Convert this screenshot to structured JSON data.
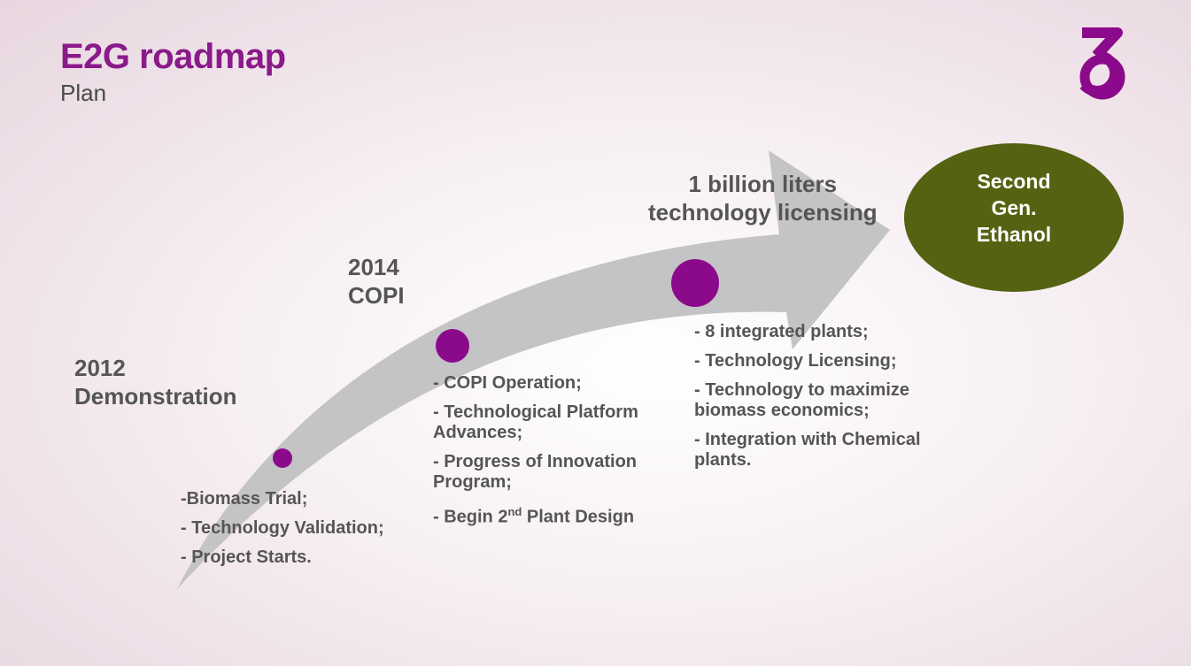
{
  "header": {
    "title": "E2G roadmap",
    "subtitle": "Plan"
  },
  "colors": {
    "title": "#8a1a8a",
    "milestone_dot": "#8b0a8b",
    "arrow": "#c4c3c6",
    "goal": "#546212",
    "logo": "#8b0a8b"
  },
  "logo": {
    "icon": "numeral-3-logo-icon"
  },
  "milestones": [
    {
      "year": "2012",
      "name": "Demonstration",
      "items": [
        "-Biomass Trial;",
        "- Technology Validation;",
        "- Project Starts."
      ]
    },
    {
      "year": "2014",
      "name": "COPI",
      "items": [
        "- COPI Operation;",
        "- Technological Platform Advances;",
        "- Progress of Innovation Program;",
        "- Begin 2nd Plant Design"
      ]
    },
    {
      "year": "1 billion liters",
      "name": "technology licensing",
      "items": [
        "- 8 integrated plants;",
        "- Technology Licensing;",
        "- Technology to maximize biomass economics;",
        "- Integration with Chemical plants."
      ]
    }
  ],
  "goal": {
    "label": "Second\nGen.\nEthanol"
  }
}
